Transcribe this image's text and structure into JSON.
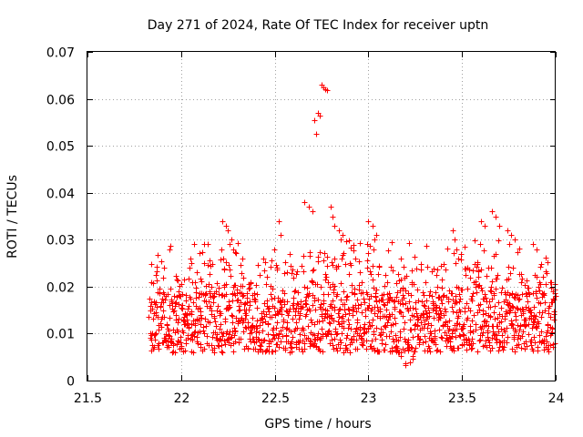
{
  "chart_data": {
    "type": "scatter",
    "title": "Day 271 of 2024, Rate Of TEC Index for receiver uptn",
    "xlabel": "GPS time / hours",
    "ylabel": "ROTI / TECUs",
    "xlim": [
      21.5,
      24
    ],
    "ylim": [
      0,
      0.07
    ],
    "x_ticks": [
      "21.5",
      "22",
      "22.5",
      "23",
      "23.5",
      "24"
    ],
    "y_ticks": [
      "0",
      "0.01",
      "0.02",
      "0.03",
      "0.04",
      "0.05",
      "0.06",
      "0.07"
    ],
    "grid": true,
    "marker": "plus",
    "color": "#ff0000",
    "time_start": 21.83,
    "time_end": 24.0,
    "baseline_band": [
      0.006,
      0.019
    ],
    "series": [
      {
        "name": "ROTI",
        "x": [
          22.22,
          22.24,
          22.25,
          22.27,
          22.28,
          22.52,
          22.53,
          22.66,
          22.68,
          22.7,
          22.72,
          22.71,
          22.73,
          22.74,
          22.75,
          22.76,
          22.77,
          22.78,
          22.8,
          22.81,
          22.82,
          22.84,
          22.86,
          22.85,
          23.0,
          23.02,
          23.04,
          23.03,
          23.45,
          23.46,
          23.47,
          23.48,
          23.6,
          23.62,
          23.66,
          23.68,
          23.7,
          23.74,
          23.76,
          23.78,
          23.88,
          23.9
        ],
        "y": [
          0.034,
          0.033,
          0.032,
          0.03,
          0.028,
          0.034,
          0.031,
          0.038,
          0.037,
          0.036,
          0.0525,
          0.0555,
          0.057,
          0.0565,
          0.063,
          0.0625,
          0.062,
          0.0618,
          0.037,
          0.035,
          0.033,
          0.032,
          0.031,
          0.03,
          0.034,
          0.033,
          0.031,
          0.03,
          0.032,
          0.03,
          0.028,
          0.026,
          0.034,
          0.033,
          0.036,
          0.035,
          0.033,
          0.032,
          0.031,
          0.03,
          0.029,
          0.028
        ]
      }
    ]
  }
}
